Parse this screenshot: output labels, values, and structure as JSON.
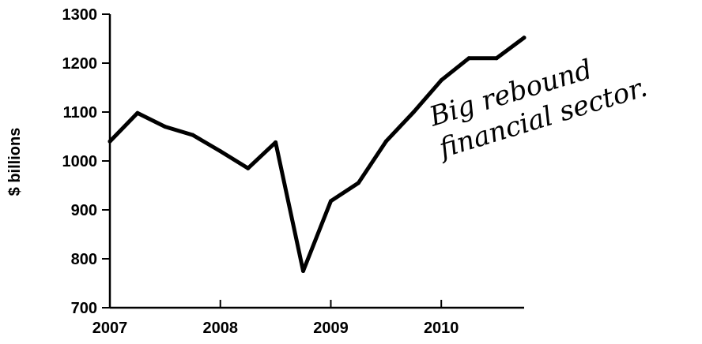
{
  "chart_data": {
    "type": "line",
    "title": "",
    "xlabel": "",
    "ylabel": "$ billions",
    "ylim": [
      700,
      1300
    ],
    "xlim": [
      2007,
      2010.75
    ],
    "x_ticks": [
      "2007",
      "2008",
      "2009",
      "2010"
    ],
    "y_ticks": [
      "700",
      "800",
      "900",
      "1000",
      "1100",
      "1200",
      "1300"
    ],
    "grid": false,
    "legend": "none",
    "line_color": "#000000",
    "series": [
      {
        "x": [
          2007.0,
          2007.25,
          2007.5,
          2007.75,
          2008.0,
          2008.25,
          2008.5,
          2008.75,
          2009.0,
          2009.25,
          2009.5,
          2009.75,
          2010.0,
          2010.25,
          2010.5,
          2010.75
        ],
        "values": [
          1040,
          1098,
          1070,
          1053,
          1020,
          985,
          1038,
          775,
          918,
          955,
          1040,
          1100,
          1165,
          1210,
          1210,
          1252
        ]
      }
    ],
    "annotations": [
      {
        "lines": [
          "Big rebound",
          "financial sector."
        ]
      }
    ]
  }
}
